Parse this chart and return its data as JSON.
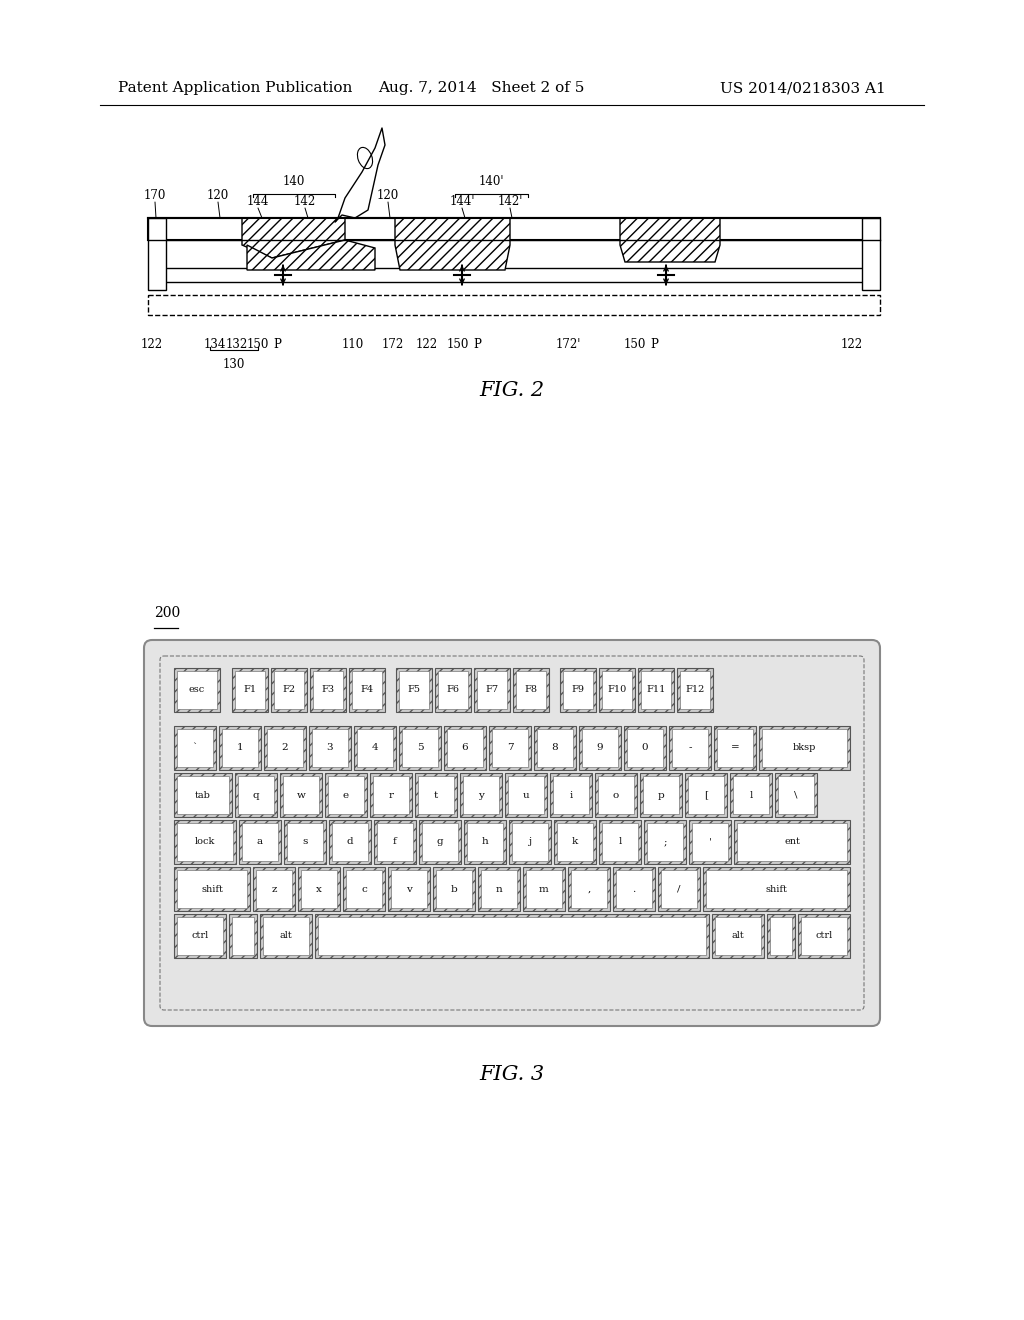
{
  "header_left": "Patent Application Publication",
  "header_mid": "Aug. 7, 2014   Sheet 2 of 5",
  "header_right": "US 2014/0218303 A1",
  "fig2_label": "FIG. 2",
  "fig3_label": "FIG. 3",
  "keyboard_ref": "200",
  "bg_color": "#ffffff",
  "line_color": "#000000",
  "key_hatch": "///",
  "key_bg": "#d8d8d8",
  "key_face": "#ffffff",
  "kb_outer_color": "#888888",
  "kb_inner_color": "#aaaaaa",
  "kb_bg": "#e8e8e8"
}
